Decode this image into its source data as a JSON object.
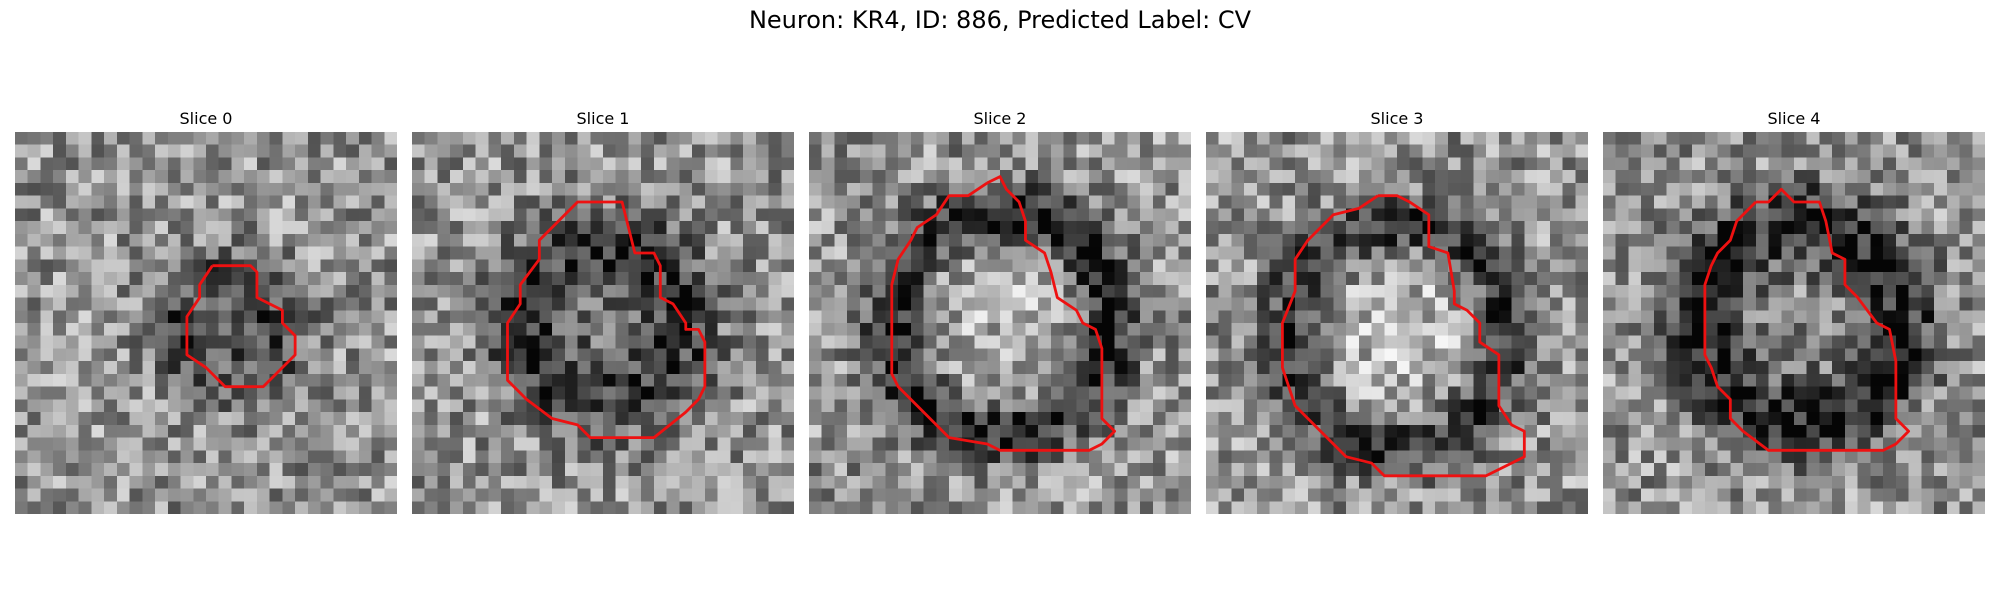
{
  "figure": {
    "title": "Neuron: KR4, ID: 886, Predicted Label: CV",
    "contour_color": "#ee1111"
  },
  "panels": [
    {
      "title": "Slice 0"
    },
    {
      "title": "Slice 1"
    },
    {
      "title": "Slice 2"
    },
    {
      "title": "Slice 3"
    },
    {
      "title": "Slice 4"
    }
  ]
}
